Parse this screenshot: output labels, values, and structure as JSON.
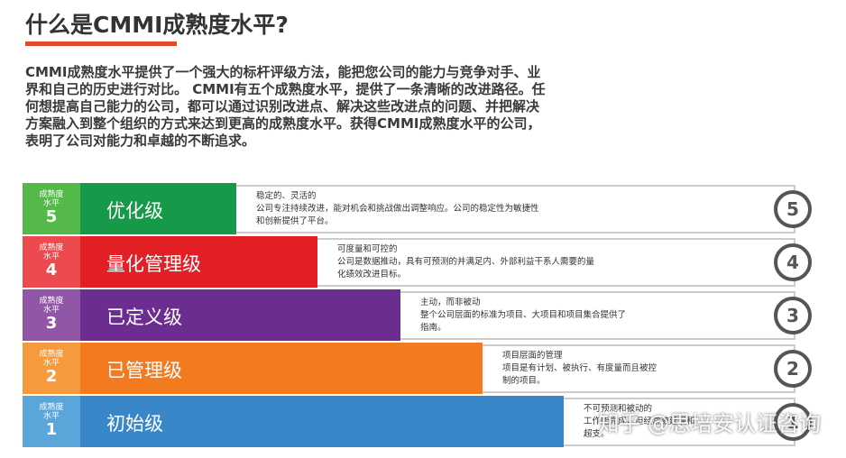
{
  "header": {
    "title": "什么是CMMI成熟度水平?"
  },
  "intro": {
    "lines": [
      "CMMI成熟度水平提供了一个强大的标杆评级方法，能把您公司的能力与竞争对手、业",
      "界和自己的历史进行对比。 CMMI有五个成熟度水平，提供了一条清晰的改进路径。任",
      "何想提高自己能力的公司，都可以通过识别改进点、解决这些改进点的问题、并把解决",
      "方案融入到整个组织的方式来达到更高的成熟度水平。获得CMMI成熟度水平的公司，",
      "表明了公司对能力和卓越的不断追求。"
    ]
  },
  "levels": [
    {
      "label_lines": [
        "成熟度",
        "水平"
      ],
      "number": "5",
      "name": "优化级",
      "description_lines": [
        "稳定的、灵活的",
        "公司专注持续改进，能对机会和挑战做出调整响应。公司的稳定性为敏捷性",
        "和创新提供了平台。"
      ],
      "badge": "5"
    },
    {
      "label_lines": [
        "成熟度",
        "水平"
      ],
      "number": "4",
      "name": "量化管理级",
      "description_lines": [
        "可度量和可控的",
        "公司是数据推动，具有可预测的并满足内、外部利益干系人需要的量",
        "化绩效改进目标。"
      ],
      "badge": "4"
    },
    {
      "label_lines": [
        "成熟度",
        "水平"
      ],
      "number": "3",
      "name": "已定义级",
      "description_lines": [
        "主动，而非被动",
        "整个公司层面的标准为项目、大项目和项目集合提供了",
        "指南。"
      ],
      "badge": "3"
    },
    {
      "label_lines": [
        "成熟度",
        "水平"
      ],
      "number": "2",
      "name": "已管理级",
      "description_lines": [
        "项目层面的管理",
        "项目是有计划、被执行、有度量而且被控",
        "制的项目。"
      ],
      "badge": "2"
    },
    {
      "label_lines": [
        "成熟度",
        "水平"
      ],
      "number": "1",
      "name": "初始级",
      "description_lines": [
        "不可预测和被动的",
        "工作能完成，但经常被延误和",
        "超支。"
      ],
      "badge": "1"
    }
  ],
  "watermark": "知乎 @思培安认证咨询"
}
